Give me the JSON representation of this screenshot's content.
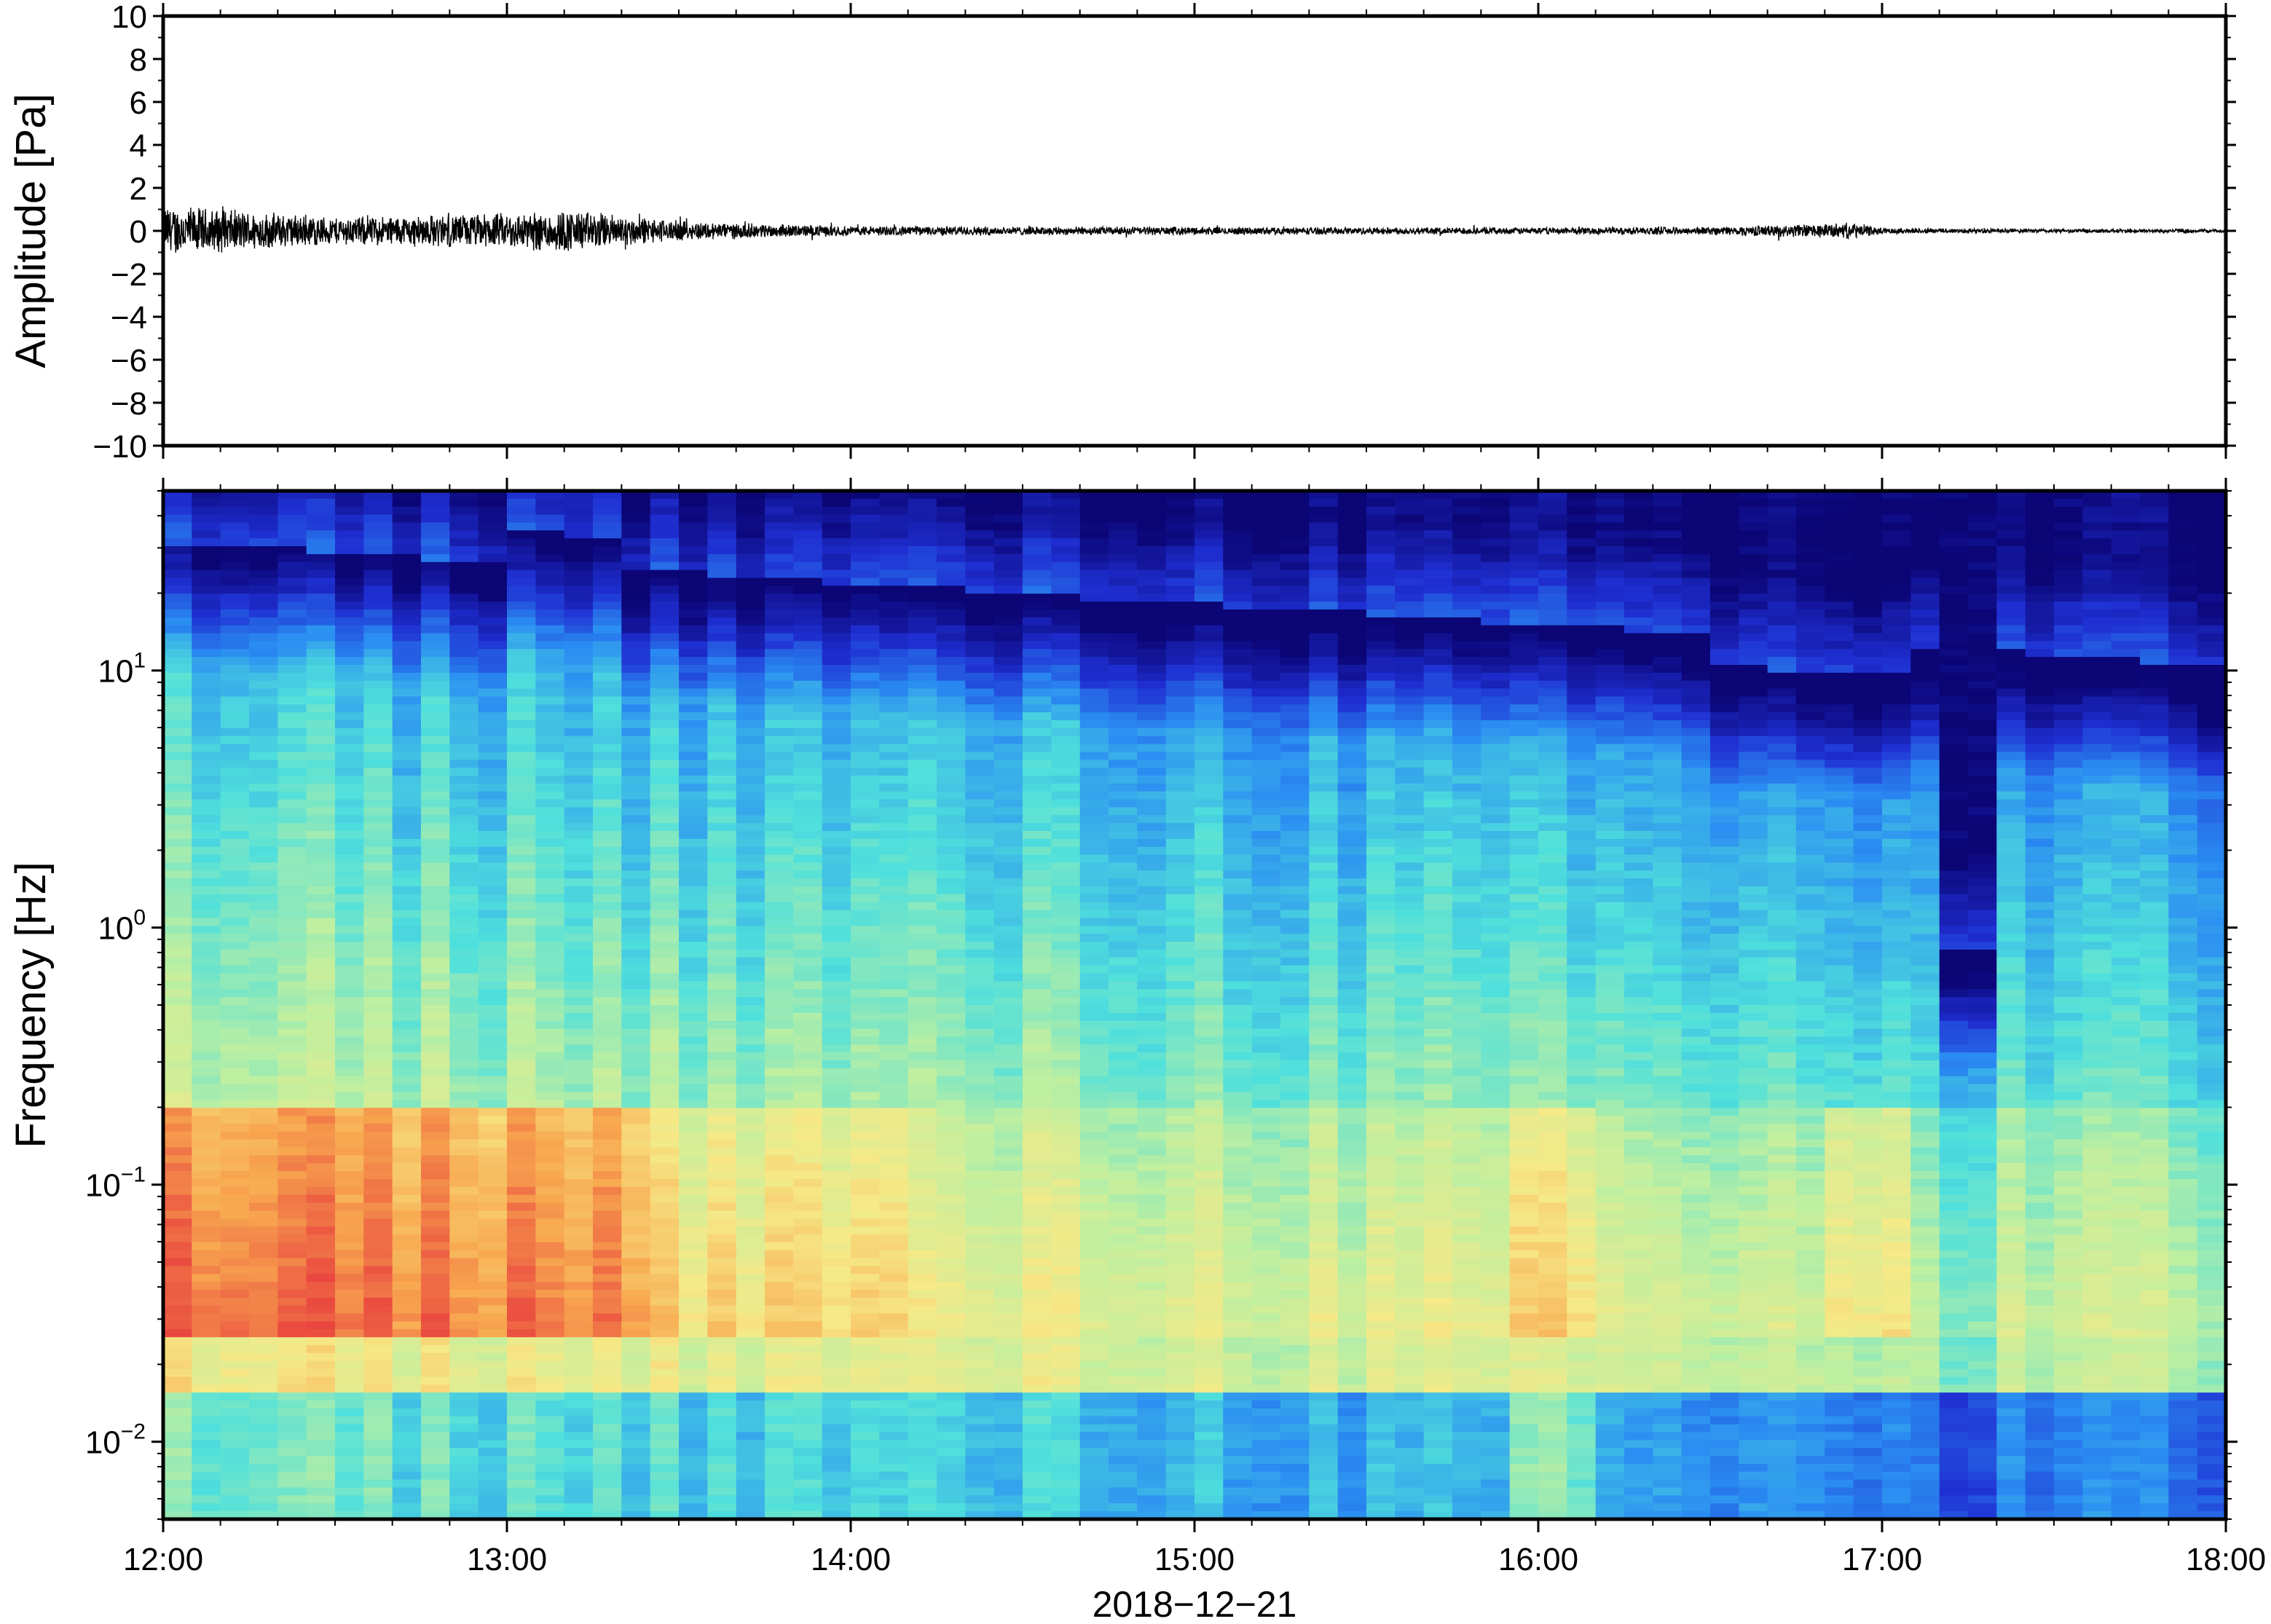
{
  "chart_data": [
    {
      "type": "line",
      "panel": "waveform",
      "ylabel": "Amplitude [Pa]",
      "ylim": [
        -10,
        10
      ],
      "y_ticks": [
        10,
        8,
        6,
        4,
        2,
        0,
        -2,
        -4,
        -6,
        -8,
        -10
      ],
      "y_tick_labels": [
        "10",
        "8",
        "6",
        "4",
        "2",
        "0",
        "−2",
        "−4",
        "−6",
        "−8",
        "−10"
      ],
      "xlim": [
        "12:00",
        "18:00"
      ],
      "series": [
        {
          "envelope_x": [
            "12:00",
            "12:15",
            "12:30",
            "12:45",
            "13:00",
            "13:10",
            "13:20",
            "13:30",
            "13:45",
            "14:00",
            "14:30",
            "15:00",
            "15:30",
            "16:00",
            "16:30",
            "16:55",
            "17:00",
            "17:30",
            "18:00"
          ],
          "envelope_values": [
            1.3,
            1.0,
            0.7,
            0.8,
            0.9,
            1.1,
            0.8,
            0.5,
            0.35,
            0.25,
            0.22,
            0.2,
            0.18,
            0.17,
            0.2,
            0.4,
            0.15,
            0.1,
            0.1
          ],
          "color": "#000000"
        }
      ],
      "grid": false
    },
    {
      "type": "heatmap",
      "panel": "spectrogram",
      "ylabel": "Frequency [Hz]",
      "xlabel": "2018−12−21",
      "y_scale": "log",
      "ylim": [
        0.005,
        50
      ],
      "y_ticks": [
        0.01,
        0.1,
        1,
        10
      ],
      "y_tick_mantissa": "10",
      "y_tick_exponents": [
        "−2",
        "−1",
        "0",
        "1"
      ],
      "x_ticks": [
        "12:00",
        "13:00",
        "14:00",
        "15:00",
        "16:00",
        "17:00",
        "18:00"
      ],
      "xlim": [
        "12:00",
        "18:00"
      ],
      "colormap": [
        "#0b0575",
        "#1f2fd2",
        "#2a8cf2",
        "#4fe0dc",
        "#bfefa0",
        "#f6e987",
        "#f8a84f",
        "#e9463f"
      ],
      "shading": "time-frequency power, strong at 0.03–0.2 Hz 12:00–13:20, dark above ~20 Hz, notch near 17:15"
    }
  ]
}
